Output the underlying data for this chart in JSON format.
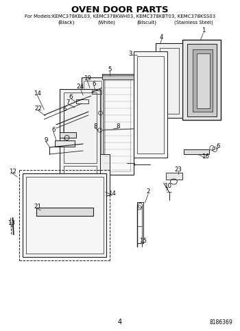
{
  "title": "OVEN DOOR PARTS",
  "subtitle_line1": "For Models:KEMC378KBL03, KEMC378KWH03, KEMC378KBT03, KEMC378KSS03",
  "subtitle_line2a": "(Black)",
  "subtitle_line2b": "(White)",
  "subtitle_line2c": "(Biscuit)",
  "subtitle_line2d": "(Stainless Steel)",
  "page_number": "4",
  "part_number": "8186369",
  "bg_color": "#ffffff",
  "lc": "#1a1a1a",
  "title_fontsize": 9.5,
  "sub_fontsize": 5.0,
  "lbl_fontsize": 6.2
}
